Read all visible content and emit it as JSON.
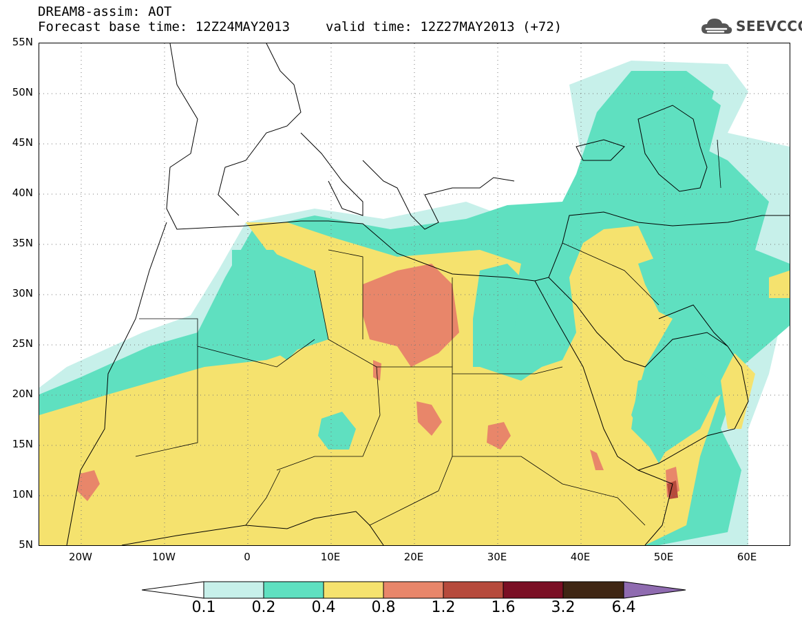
{
  "header": {
    "title": "DREAM8-assim: AOT",
    "base_time": "Forecast base time: 12Z24MAY2013",
    "valid_time": "valid time: 12Z27MAY2013 (+72)"
  },
  "logo": {
    "text": "SEEVCCC",
    "icon": "cloud-icon"
  },
  "map": {
    "projection": "plate-carree",
    "lon_range": [
      -25,
      65
    ],
    "lat_range": [
      5,
      55
    ],
    "lat_labels": [
      "55N",
      "50N",
      "45N",
      "40N",
      "35N",
      "30N",
      "25N",
      "20N",
      "15N",
      "10N",
      "5N"
    ],
    "lon_labels": [
      "20W",
      "10W",
      "0",
      "10E",
      "20E",
      "30E",
      "40E",
      "50E",
      "60E"
    ],
    "grid": true
  },
  "legend": {
    "thresholds": [
      "0.1",
      "0.2",
      "0.4",
      "0.8",
      "1.2",
      "1.6",
      "3.2",
      "6.4"
    ],
    "colors": [
      "#ffffff",
      "#c7f0ea",
      "#5fe0c0",
      "#f5e26e",
      "#e8866a",
      "#b64a3c",
      "#7a0f24",
      "#3f2614",
      "#8f6bb0"
    ]
  }
}
